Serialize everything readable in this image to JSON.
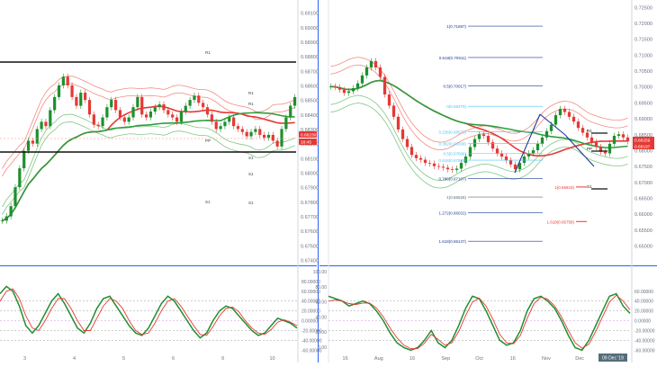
{
  "chart_data": [
    {
      "type": "candlestick",
      "panel": "left-price",
      "y_ticks": [
        "0.69100",
        "0.69000",
        "0.68900",
        "0.68800",
        "0.68700",
        "0.68600",
        "0.68500",
        "0.68400",
        "0.68300",
        "0.68200",
        "0.68100",
        "0.68000",
        "0.67900",
        "0.67800",
        "0.67700",
        "0.67600",
        "0.67500",
        "0.67400"
      ],
      "x_ticks": [
        "3",
        "4",
        "5",
        "6",
        "9",
        "10"
      ],
      "ylim": [
        0.674,
        0.6915
      ],
      "price_tags": [
        {
          "label": "0.68230",
          "color": "#e53935"
        },
        {
          "label": "18:45",
          "color": "#e53935"
        }
      ],
      "pivot_labels": [
        "R1",
        "R1",
        "R1",
        "PP",
        "S1",
        "S1",
        "S1",
        "S1"
      ],
      "candles": [
        0.6767,
        0.677,
        0.6777,
        0.679,
        0.6803,
        0.6815,
        0.6822,
        0.682,
        0.683,
        0.6835,
        0.6832,
        0.6843,
        0.6852,
        0.686,
        0.6866,
        0.686,
        0.6852,
        0.6846,
        0.6855,
        0.685,
        0.684,
        0.6833,
        0.6832,
        0.6838,
        0.6845,
        0.685,
        0.6843,
        0.6838,
        0.6835,
        0.6838,
        0.6845,
        0.6852,
        0.684,
        0.6838,
        0.6842,
        0.6845,
        0.6847,
        0.6843,
        0.684,
        0.6838,
        0.6835,
        0.6842,
        0.6846,
        0.685,
        0.6853,
        0.6848,
        0.6845,
        0.684,
        0.6835,
        0.683,
        0.6832,
        0.6835,
        0.6838,
        0.6832,
        0.683,
        0.6828,
        0.6825,
        0.6828,
        0.683,
        0.6826,
        0.6824,
        0.6826,
        0.6822,
        0.6818,
        0.683,
        0.6838,
        0.6846,
        0.6852
      ]
    },
    {
      "type": "candlestick",
      "panel": "right-price",
      "y_ticks": [
        "0.72500",
        "0.72000",
        "0.71500",
        "0.71000",
        "0.70500",
        "0.70000",
        "0.69500",
        "0.69000",
        "0.68500",
        "0.68000",
        "0.67500",
        "0.67000",
        "0.66500",
        "0.66000",
        "0.65500",
        "0.65000"
      ],
      "x_ticks": [
        "16",
        "Aug",
        "16",
        "Sep",
        "Oct",
        "16",
        "Nov",
        "Dec",
        "17"
      ],
      "ylim": [
        0.6455,
        0.7255
      ],
      "price_tags": [
        {
          "label": "0.68259",
          "color": "#e53935"
        },
        {
          "label": "0.68197",
          "color": "#e53935"
        },
        {
          "label": "09 Dec '19",
          "color": "#546e7a"
        }
      ],
      "pivot_labels": [
        "R1",
        "PP",
        "S1"
      ],
      "fib_levels": [
        {
          "label": "1(0.71897)",
          "value": 0.71897,
          "color": "#1f3a93"
        },
        {
          "label": "0.618(0.70911)",
          "value": 0.70911,
          "color": "#1f3a93"
        },
        {
          "label": "0.5(0.70017)",
          "value": 0.70017,
          "color": "#1f3a93"
        },
        {
          "label": "0(0.69379)",
          "value": 0.69379,
          "color": "#4fc3f7"
        },
        {
          "label": "0.236(0.68573)",
          "value": 0.68573,
          "color": "#4fc3f7"
        },
        {
          "label": "0.382(0.68208)",
          "value": 0.68208,
          "color": "#4fc3f7"
        },
        {
          "label": "0.5(0.67896)",
          "value": 0.67896,
          "color": "#4fc3f7"
        },
        {
          "label": "0.618(0.67686)",
          "value": 0.67686,
          "color": "#4fc3f7"
        },
        {
          "label": "0.786(0.67107)",
          "value": 0.67107,
          "color": "#1f3a93"
        },
        {
          "label": "1(0.66526)",
          "value": 0.66526,
          "color": "#546e7a"
        },
        {
          "label": "1.272(0.66031)",
          "value": 0.66031,
          "color": "#1f3a93"
        },
        {
          "label": "1.618(0.65137)",
          "value": 0.65137,
          "color": "#1f3a93"
        }
      ],
      "targets": [
        {
          "label": "1(0.66843)",
          "value": 0.66843,
          "color": "#e53935"
        },
        {
          "label": "1.618(0.65758)",
          "value": 0.65758,
          "color": "#e53935"
        }
      ],
      "candles": [
        0.7,
        0.6998,
        0.699,
        0.698,
        0.6985,
        0.6995,
        0.701,
        0.7035,
        0.706,
        0.708,
        0.706,
        0.703,
        0.6975,
        0.694,
        0.6905,
        0.6865,
        0.6835,
        0.681,
        0.6785,
        0.6775,
        0.677,
        0.676,
        0.6758,
        0.675,
        0.6748,
        0.6745,
        0.674,
        0.6738,
        0.6742,
        0.676,
        0.678,
        0.681,
        0.6835,
        0.685,
        0.6845,
        0.6825,
        0.6805,
        0.679,
        0.678,
        0.6768,
        0.6755,
        0.674,
        0.676,
        0.678,
        0.679,
        0.68,
        0.682,
        0.684,
        0.686,
        0.688,
        0.691,
        0.693,
        0.692,
        0.6905,
        0.689,
        0.687,
        0.6855,
        0.684,
        0.6825,
        0.681,
        0.6795,
        0.679,
        0.682,
        0.6845,
        0.685,
        0.684,
        0.6828
      ]
    },
    {
      "type": "line",
      "panel": "left-oscillator",
      "y_ticks": [
        "80.00000",
        "60.00000",
        "40.00000",
        "20.00000",
        "0.00000",
        "-20.00000",
        "-40.00000",
        "-60.00000"
      ],
      "ylim": [
        -65,
        100
      ],
      "series": [
        {
          "color": "#1e8f2e",
          "values": [
            55,
            70,
            60,
            30,
            -10,
            -25,
            -10,
            15,
            40,
            55,
            35,
            10,
            -15,
            -25,
            -5,
            25,
            45,
            50,
            30,
            10,
            -10,
            -25,
            -30,
            -15,
            10,
            35,
            50,
            40,
            20,
            0,
            -20,
            -35,
            -25,
            0,
            20,
            30,
            25,
            10,
            -5,
            -20,
            -30,
            -25,
            -10,
            5,
            0,
            -5,
            -15
          ]
        },
        {
          "color": "#e53935",
          "values": [
            40,
            60,
            65,
            45,
            10,
            -15,
            -20,
            0,
            25,
            45,
            45,
            25,
            0,
            -20,
            -20,
            5,
            30,
            45,
            40,
            25,
            0,
            -20,
            -28,
            -25,
            -5,
            20,
            40,
            45,
            30,
            10,
            -10,
            -28,
            -30,
            -12,
            10,
            25,
            28,
            18,
            0,
            -15,
            -25,
            -28,
            -18,
            -3,
            2,
            -3,
            -10
          ]
        }
      ]
    },
    {
      "type": "line",
      "panel": "right-oscillator",
      "y_ticks_left": [
        "100.00",
        "80.00",
        "60.00",
        "40.00",
        "20.00",
        "0.00"
      ],
      "y_ticks_right": [
        "60.00000",
        "40.00000",
        "20.00000",
        "0.00000",
        "-20.00000",
        "-40.00000",
        "-60.00000"
      ],
      "ylim": [
        -65,
        100
      ],
      "series": [
        {
          "color": "#1e8f2e",
          "values": [
            50,
            45,
            40,
            30,
            35,
            40,
            35,
            20,
            0,
            -25,
            -45,
            -55,
            -60,
            -55,
            -40,
            -20,
            -45,
            -55,
            -40,
            -10,
            25,
            50,
            45,
            20,
            -10,
            -40,
            -50,
            -45,
            -20,
            20,
            45,
            50,
            40,
            25,
            0,
            -30,
            -55,
            -60,
            -40,
            -10,
            20,
            50,
            55,
            30,
            15
          ]
        },
        {
          "color": "#e53935",
          "values": [
            40,
            42,
            40,
            35,
            33,
            36,
            36,
            26,
            8,
            -15,
            -35,
            -50,
            -57,
            -57,
            -46,
            -28,
            -38,
            -50,
            -45,
            -22,
            10,
            38,
            46,
            30,
            3,
            -28,
            -45,
            -47,
            -30,
            5,
            35,
            48,
            44,
            30,
            8,
            -20,
            -45,
            -56,
            -48,
            -22,
            8,
            38,
            52,
            40,
            22
          ]
        }
      ]
    }
  ]
}
